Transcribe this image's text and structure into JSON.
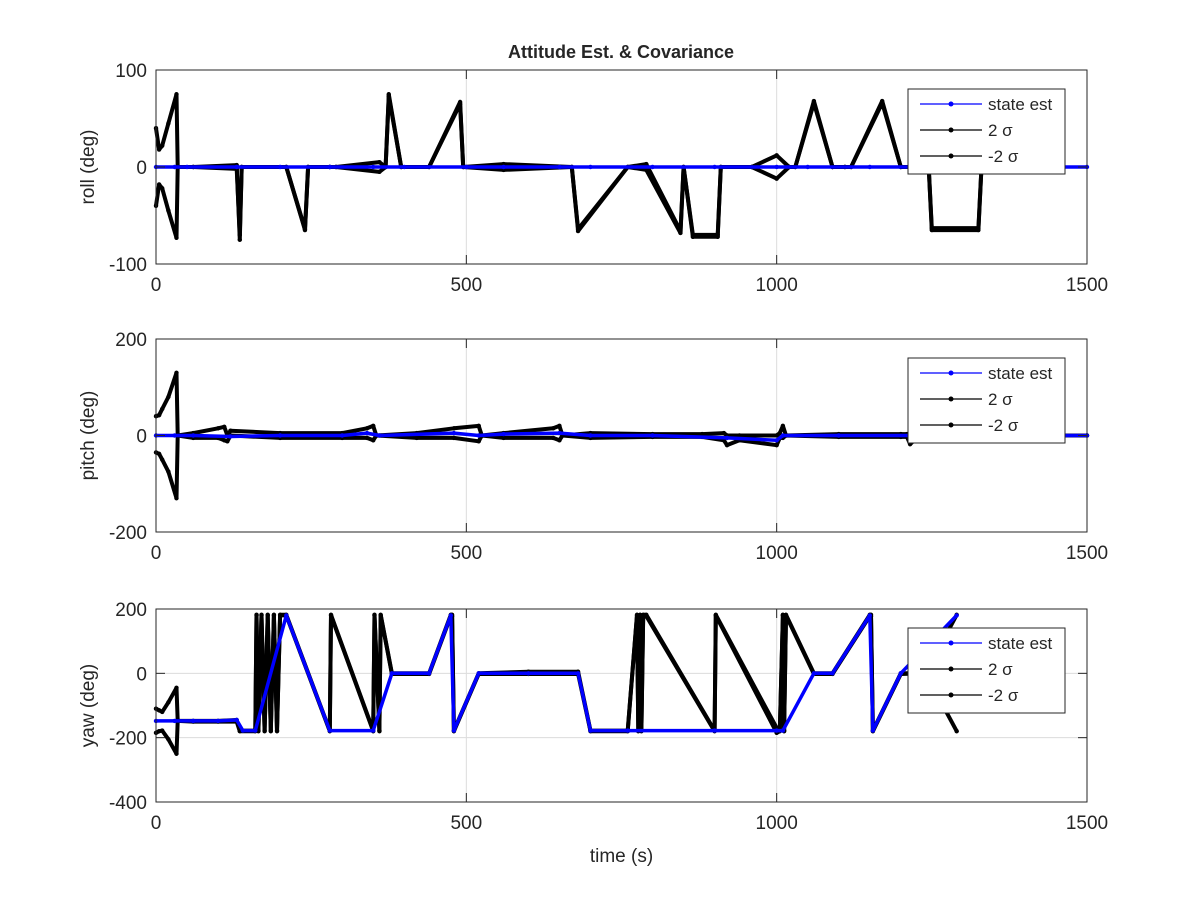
{
  "figure": {
    "title": "Attitude Est. & Covariance"
  },
  "colors": {
    "state_est": "#0000ff",
    "sigma": "#000000",
    "grid": "#dcdcdc",
    "axis": "#262626"
  },
  "legend_placement": "top-right",
  "chart_data": [
    {
      "type": "line",
      "title": "Attitude Est. & Covariance",
      "xlabel": "",
      "ylabel": "roll (deg)",
      "xlim": [
        0,
        1500
      ],
      "ylim": [
        -100,
        100
      ],
      "xticks": [
        0,
        500,
        1000,
        1500
      ],
      "yticks": [
        -100,
        0,
        100
      ],
      "grid": true,
      "legend": [
        "state est",
        "2 σ",
        "-2 σ"
      ],
      "series": [
        {
          "name": "state est",
          "x": [
            0,
            30,
            50,
            130,
            200,
            280,
            350,
            400,
            500,
            560,
            650,
            700,
            800,
            900,
            1000,
            1050,
            1150,
            1300,
            1500
          ],
          "y": [
            0,
            0,
            0,
            0,
            0,
            0,
            0,
            0,
            0,
            0,
            0,
            0,
            0,
            0,
            0,
            0,
            0,
            0,
            0
          ]
        },
        {
          "name": "2 σ",
          "x": [
            0,
            5,
            10,
            20,
            33,
            35,
            60,
            130,
            135,
            138,
            210,
            240,
            245,
            280,
            290,
            360,
            370,
            375,
            395,
            440,
            490,
            495,
            560,
            670,
            680,
            760,
            790,
            845,
            850,
            865,
            905,
            910,
            960,
            1000,
            1020,
            1030,
            1060,
            1090,
            1110,
            1120,
            1170,
            1200,
            1245,
            1250,
            1325,
            1330
          ],
          "y": [
            40,
            18,
            22,
            45,
            75,
            0,
            0,
            -2,
            -70,
            0,
            0,
            -64,
            0,
            0,
            0,
            5,
            0,
            75,
            0,
            0,
            67,
            0,
            3,
            0,
            -64,
            0,
            3,
            -66,
            0,
            -70,
            -70,
            0,
            0,
            12,
            0,
            0,
            68,
            0,
            0,
            0,
            68,
            0,
            0,
            -63,
            -63,
            0
          ]
        },
        {
          "name": "-2 σ",
          "x": [
            0,
            5,
            10,
            20,
            33,
            35,
            60,
            130,
            135,
            138,
            210,
            240,
            245,
            280,
            290,
            360,
            370,
            375,
            395,
            440,
            490,
            495,
            560,
            670,
            680,
            760,
            790,
            845,
            850,
            865,
            905,
            910,
            960,
            1000,
            1020,
            1030,
            1060,
            1090,
            1110,
            1120,
            1170,
            1200,
            1245,
            1250,
            1325,
            1330
          ],
          "y": [
            -40,
            -18,
            -22,
            -45,
            -73,
            0,
            0,
            2,
            -75,
            0,
            0,
            -65,
            0,
            0,
            0,
            -5,
            0,
            73,
            0,
            0,
            65,
            0,
            -3,
            0,
            -66,
            0,
            -3,
            -68,
            0,
            -72,
            -72,
            0,
            0,
            -12,
            0,
            0,
            66,
            0,
            0,
            0,
            66,
            0,
            0,
            -65,
            -65,
            0
          ]
        }
      ]
    },
    {
      "type": "line",
      "title": "",
      "xlabel": "",
      "ylabel": "pitch (deg)",
      "xlim": [
        0,
        1500
      ],
      "ylim": [
        -200,
        200
      ],
      "xticks": [
        0,
        500,
        1000,
        1500
      ],
      "yticks": [
        -200,
        0,
        200
      ],
      "grid": true,
      "legend": [
        "state est",
        "2 σ",
        "-2 σ"
      ],
      "series": [
        {
          "name": "state est",
          "x": [
            0,
            30,
            60,
            120,
            200,
            300,
            340,
            360,
            480,
            520,
            560,
            650,
            700,
            800,
            920,
            1000,
            1010,
            1100,
            1220,
            1500
          ],
          "y": [
            0,
            0,
            0,
            -2,
            0,
            0,
            5,
            0,
            5,
            0,
            3,
            5,
            0,
            0,
            -5,
            -10,
            0,
            0,
            0,
            0
          ]
        },
        {
          "name": "2 σ",
          "x": [
            0,
            5,
            10,
            20,
            33,
            35,
            60,
            100,
            110,
            115,
            120,
            200,
            300,
            340,
            350,
            355,
            420,
            480,
            520,
            525,
            560,
            640,
            650,
            655,
            700,
            800,
            880,
            915,
            920,
            940,
            1000,
            1005,
            1010,
            1015,
            1100,
            1200,
            1210,
            1215,
            1230,
            1500
          ],
          "y": [
            40,
            42,
            55,
            80,
            130,
            0,
            5,
            15,
            18,
            0,
            10,
            5,
            5,
            15,
            20,
            0,
            5,
            15,
            20,
            0,
            5,
            15,
            20,
            0,
            5,
            3,
            3,
            5,
            0,
            0,
            0,
            5,
            20,
            0,
            3,
            3,
            3,
            0,
            0,
            0
          ]
        },
        {
          "name": "-2 σ",
          "x": [
            0,
            5,
            10,
            20,
            33,
            35,
            60,
            100,
            110,
            115,
            120,
            200,
            300,
            340,
            350,
            355,
            420,
            480,
            520,
            525,
            560,
            640,
            650,
            655,
            700,
            800,
            880,
            915,
            920,
            940,
            1000,
            1005,
            1010,
            1015,
            1100,
            1200,
            1210,
            1215,
            1230,
            1500
          ],
          "y": [
            -35,
            -38,
            -50,
            -75,
            -130,
            0,
            -5,
            -5,
            -10,
            -12,
            0,
            -5,
            -5,
            -5,
            -10,
            0,
            -5,
            -5,
            -12,
            0,
            -5,
            -5,
            -10,
            0,
            -5,
            -3,
            -3,
            -10,
            -20,
            -10,
            -20,
            -5,
            -5,
            0,
            -3,
            -3,
            -3,
            -18,
            0,
            0
          ]
        }
      ]
    },
    {
      "type": "line",
      "title": "",
      "xlabel": "time (s)",
      "ylabel": "yaw (deg)",
      "xlim": [
        0,
        1500
      ],
      "ylim": [
        -400,
        200
      ],
      "xticks": [
        0,
        500,
        1000,
        1500
      ],
      "yticks": [
        -400,
        -200,
        0,
        200
      ],
      "grid": true,
      "legend": [
        "state est",
        "2 σ",
        "-2 σ"
      ],
      "series": [
        {
          "name": "state est",
          "x": [
            0,
            30,
            60,
            100,
            130,
            140,
            160,
            210,
            280,
            350,
            380,
            440,
            475,
            480,
            520,
            600,
            680,
            700,
            760,
            900,
            1000,
            1010,
            1060,
            1090,
            1150,
            1155,
            1200,
            1290
          ],
          "y": [
            -148,
            -148,
            -148,
            -148,
            -145,
            -178,
            -178,
            180,
            -178,
            -178,
            0,
            0,
            180,
            -178,
            0,
            0,
            0,
            -178,
            -178,
            -178,
            -178,
            -178,
            0,
            0,
            180,
            -178,
            0,
            180
          ]
        },
        {
          "name": "2 σ",
          "x": [
            0,
            5,
            10,
            20,
            33,
            35,
            60,
            100,
            130,
            135,
            160,
            162,
            165,
            170,
            175,
            180,
            185,
            190,
            195,
            200,
            210,
            280,
            282,
            350,
            352,
            360,
            362,
            380,
            440,
            475,
            477,
            480,
            520,
            600,
            680,
            700,
            760,
            775,
            777,
            780,
            782,
            785,
            790,
            900,
            902,
            1000,
            1005,
            1010,
            1012,
            1015,
            1060,
            1090,
            1150,
            1152,
            1155,
            1200,
            1240,
            1290
          ],
          "y": [
            -110,
            -115,
            -120,
            -90,
            -45,
            -148,
            -148,
            -148,
            -145,
            -178,
            -178,
            182,
            -178,
            182,
            -178,
            182,
            -178,
            182,
            -178,
            182,
            182,
            -178,
            182,
            -178,
            182,
            -178,
            182,
            0,
            0,
            182,
            182,
            -178,
            0,
            5,
            5,
            -178,
            -178,
            182,
            -178,
            182,
            -178,
            182,
            182,
            -178,
            182,
            -170,
            -178,
            182,
            -178,
            182,
            0,
            0,
            182,
            182,
            -178,
            0,
            0,
            182
          ]
        },
        {
          "name": "-2 σ",
          "x": [
            0,
            5,
            10,
            20,
            33,
            35,
            60,
            100,
            130,
            135,
            160,
            162,
            165,
            170,
            175,
            180,
            185,
            190,
            195,
            200,
            210,
            280,
            282,
            350,
            352,
            360,
            362,
            380,
            440,
            475,
            477,
            480,
            520,
            600,
            680,
            700,
            760,
            775,
            777,
            780,
            782,
            785,
            790,
            900,
            902,
            1000,
            1005,
            1010,
            1012,
            1015,
            1060,
            1090,
            1150,
            1152,
            1155,
            1200,
            1240,
            1290
          ],
          "y": [
            -185,
            -180,
            -178,
            -205,
            -250,
            -148,
            -150,
            -150,
            -150,
            -180,
            -180,
            180,
            -180,
            180,
            -180,
            180,
            -180,
            180,
            -180,
            180,
            180,
            -180,
            180,
            -180,
            180,
            -180,
            180,
            -2,
            -2,
            178,
            178,
            -180,
            -2,
            -2,
            -2,
            -180,
            -180,
            180,
            -180,
            180,
            -180,
            180,
            178,
            -180,
            180,
            -185,
            -180,
            180,
            -180,
            180,
            -2,
            -2,
            178,
            178,
            -180,
            -2,
            0,
            -180
          ]
        }
      ]
    }
  ]
}
